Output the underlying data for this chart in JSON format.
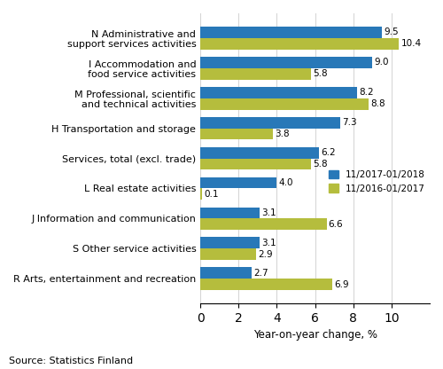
{
  "categories": [
    "N Administrative and\nsupport services activities",
    "I Accommodation and\nfood service activities",
    "M Professional, scientific\nand technical activities",
    "H Transportation and storage",
    "Services, total (excl. trade)",
    "L Real estate activities",
    "J Information and communication",
    "S Other service activities",
    "R Arts, entertainment and recreation"
  ],
  "series1_label": "11/2017-01/2018",
  "series2_label": "11/2016-01/2017",
  "series1_values": [
    9.5,
    9.0,
    8.2,
    7.3,
    6.2,
    4.0,
    3.1,
    3.1,
    2.7
  ],
  "series2_values": [
    10.4,
    5.8,
    8.8,
    3.8,
    5.8,
    0.1,
    6.6,
    2.9,
    6.9
  ],
  "color1": "#2878b8",
  "color2": "#b5bd3d",
  "xlabel": "Year-on-year change, %",
  "xlim": [
    0,
    12.0
  ],
  "xticks": [
    0,
    2,
    4,
    6,
    8,
    10
  ],
  "source_text": "Source: Statistics Finland",
  "bar_height": 0.38,
  "value_fontsize": 7.5,
  "label_fontsize": 8.0,
  "legend_fontsize": 7.5,
  "xlabel_fontsize": 8.5,
  "source_fontsize": 8.0
}
